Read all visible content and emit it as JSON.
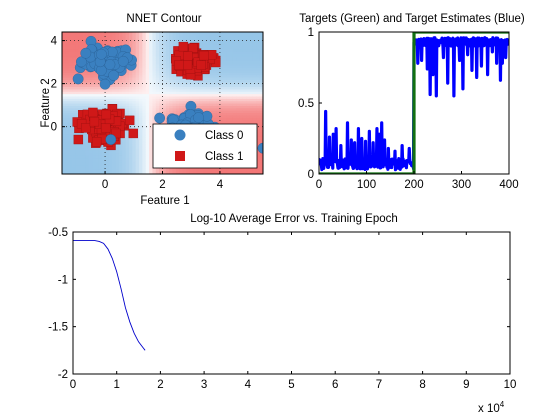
{
  "chart_data": [
    {
      "id": "nnet-contour",
      "type": "scatter",
      "title": "NNET Contour",
      "xlabel": "Feature 1",
      "ylabel": "Feature 2",
      "xlim": [
        -1.5,
        5.5
      ],
      "ylim": [
        -2.2,
        4.4
      ],
      "xticks": [
        0,
        2,
        4
      ],
      "yticks": [
        0,
        2,
        4
      ],
      "grid": true,
      "legend": {
        "placement": "bottom-right"
      },
      "colors": {
        "class0": "#3a80c0",
        "class1": "#d01818",
        "region0": "#8cc0e6",
        "region1": "#f26a6a"
      },
      "series": [
        {
          "name": "Class 0",
          "marker": "circle",
          "clusters": [
            {
              "center": [
                0,
                3
              ],
              "spread": 0.7
            },
            {
              "center": [
                3,
                0
              ],
              "spread": 0.6
            }
          ]
        },
        {
          "name": "Class 1",
          "marker": "square",
          "clusters": [
            {
              "center": [
                3,
                3
              ],
              "spread": 0.6
            },
            {
              "center": [
                0,
                0
              ],
              "spread": 0.7
            }
          ]
        }
      ]
    },
    {
      "id": "targets-estimates",
      "type": "line",
      "title": "Targets (Green) and Target Estimates (Blue)",
      "xlim": [
        0,
        400
      ],
      "ylim": [
        0,
        1
      ],
      "xticks": [
        0,
        100,
        200,
        300,
        400
      ],
      "yticks": [
        0,
        0.5,
        1
      ],
      "ytick_labels": [
        "0",
        "0.5",
        "1"
      ],
      "colors": {
        "targets": "#127012",
        "estimates": "#0000ff"
      },
      "series": [
        {
          "name": "Targets",
          "points": [
            [
              0,
              0
            ],
            [
              200,
              0
            ],
            [
              200,
              1
            ],
            [
              400,
              1
            ]
          ]
        },
        {
          "name": "Target Estimates",
          "segments": [
            {
              "x_range": [
                0,
                200
              ],
              "baseline": 0.07,
              "noise": 0.04
            },
            {
              "x_range": [
                200,
                400
              ],
              "baseline": 0.93,
              "noise": 0.03
            }
          ],
          "spikes": [
            [
              14,
              0.44
            ],
            [
              22,
              0.26
            ],
            [
              30,
              0.28
            ],
            [
              36,
              0.32
            ],
            [
              46,
              0.2
            ],
            [
              60,
              0.36
            ],
            [
              68,
              0.24
            ],
            [
              75,
              0.22
            ],
            [
              83,
              0.32
            ],
            [
              90,
              0.25
            ],
            [
              98,
              0.23
            ],
            [
              106,
              0.3
            ],
            [
              114,
              0.22
            ],
            [
              122,
              0.32
            ],
            [
              127,
              0.28
            ],
            [
              132,
              0.36
            ],
            [
              138,
              0.24
            ],
            [
              146,
              0.18
            ],
            [
              160,
              0.16
            ],
            [
              175,
              0.2
            ],
            [
              190,
              0.18
            ],
            [
              208,
              0.78
            ],
            [
              216,
              0.8
            ],
            [
              228,
              0.74
            ],
            [
              234,
              0.56
            ],
            [
              240,
              0.7
            ],
            [
              247,
              0.55
            ],
            [
              262,
              0.82
            ],
            [
              271,
              0.64
            ],
            [
              284,
              0.55
            ],
            [
              296,
              0.8
            ],
            [
              303,
              0.6
            ],
            [
              313,
              0.84
            ],
            [
              322,
              0.73
            ],
            [
              332,
              0.68
            ],
            [
              342,
              0.76
            ],
            [
              355,
              0.7
            ],
            [
              365,
              0.86
            ],
            [
              374,
              0.78
            ],
            [
              382,
              0.66
            ],
            [
              386,
              0.78
            ],
            [
              393,
              0.82
            ]
          ]
        }
      ]
    },
    {
      "id": "log-error",
      "type": "line",
      "title": "Log-10 Average Error vs. Training Epoch",
      "xlim": [
        0,
        10
      ],
      "ylim": [
        -2,
        -0.5
      ],
      "xticks": [
        0,
        1,
        2,
        3,
        4,
        5,
        6,
        7,
        8,
        9,
        10
      ],
      "yticks": [
        -2,
        -1.5,
        -1,
        -0.5
      ],
      "ytick_labels": [
        "-2",
        "-1.5",
        "-1",
        "-0.5"
      ],
      "x_multiplier": {
        "base": "x 10",
        "exponent": "4"
      },
      "colors": {
        "line": "#0000cc"
      },
      "series": [
        {
          "name": "",
          "x": [
            0,
            0.5,
            0.6,
            0.7,
            0.8,
            0.9,
            1.0,
            1.1,
            1.2,
            1.3,
            1.4,
            1.5,
            1.6,
            1.65
          ],
          "y": [
            -0.59,
            -0.59,
            -0.6,
            -0.62,
            -0.68,
            -0.78,
            -0.92,
            -1.1,
            -1.3,
            -1.45,
            -1.57,
            -1.66,
            -1.72,
            -1.75
          ]
        }
      ]
    }
  ]
}
